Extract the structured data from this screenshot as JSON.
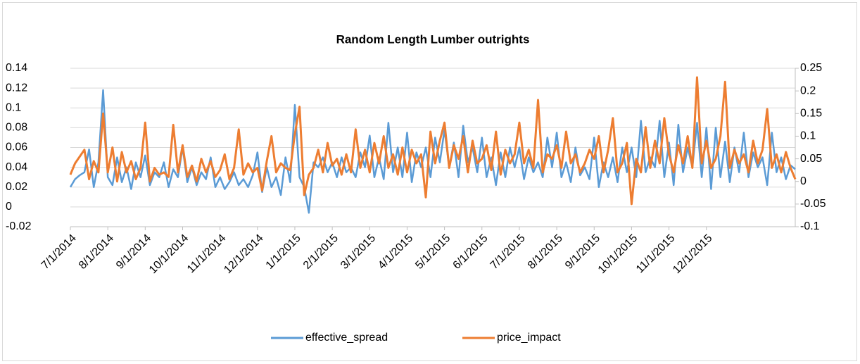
{
  "chart_data": {
    "type": "line",
    "title": "Random Length Lumber outrights",
    "categories": [
      "7/1/2014",
      null,
      null,
      null,
      null,
      null,
      null,
      null,
      "8/1/2014",
      null,
      null,
      null,
      null,
      null,
      null,
      null,
      "9/1/2014",
      null,
      null,
      null,
      null,
      null,
      null,
      null,
      "10/1/2014",
      null,
      null,
      null,
      null,
      null,
      null,
      null,
      "11/1/2014",
      null,
      null,
      null,
      null,
      null,
      null,
      null,
      "12/1/2014",
      null,
      null,
      null,
      null,
      null,
      null,
      null,
      "1/1/2015",
      null,
      null,
      null,
      null,
      null,
      null,
      null,
      "2/1/2015",
      null,
      null,
      null,
      null,
      null,
      null,
      null,
      "3/1/2015",
      null,
      null,
      null,
      null,
      null,
      null,
      null,
      "4/1/2015",
      null,
      null,
      null,
      null,
      null,
      null,
      null,
      "5/1/2015",
      null,
      null,
      null,
      null,
      null,
      null,
      null,
      "6/1/2015",
      null,
      null,
      null,
      null,
      null,
      null,
      null,
      "7/1/2015",
      null,
      null,
      null,
      null,
      null,
      null,
      null,
      "8/1/2015",
      null,
      null,
      null,
      null,
      null,
      null,
      null,
      "9/1/2015",
      null,
      null,
      null,
      null,
      null,
      null,
      null,
      "10/1/2015",
      null,
      null,
      null,
      null,
      null,
      null,
      null,
      "11/1/2015",
      null,
      null,
      null,
      null,
      null,
      null,
      null,
      "12/1/2015",
      null,
      null,
      null,
      null,
      null,
      null,
      null,
      null,
      null,
      null,
      null,
      null,
      null,
      null,
      null,
      null,
      null,
      null,
      null
    ],
    "series": [
      {
        "name": "effective_spread",
        "color": "#5b9bd5",
        "axis": "y",
        "values": [
          0.02,
          0.028,
          0.032,
          0.035,
          0.058,
          0.02,
          0.045,
          0.118,
          0.03,
          0.022,
          0.05,
          0.025,
          0.04,
          0.018,
          0.045,
          0.03,
          0.052,
          0.022,
          0.035,
          0.03,
          0.045,
          0.02,
          0.038,
          0.03,
          0.06,
          0.025,
          0.04,
          0.022,
          0.035,
          0.028,
          0.05,
          0.02,
          0.03,
          0.018,
          0.025,
          0.035,
          0.022,
          0.028,
          0.02,
          0.032,
          0.055,
          0.015,
          0.04,
          0.02,
          0.03,
          0.012,
          0.05,
          0.025,
          0.103,
          0.03,
          0.02,
          -0.006,
          0.045,
          0.04,
          0.05,
          0.035,
          0.045,
          0.03,
          0.05,
          0.035,
          0.04,
          0.03,
          0.055,
          0.04,
          0.072,
          0.03,
          0.05,
          0.028,
          0.085,
          0.035,
          0.06,
          0.03,
          0.075,
          0.025,
          0.055,
          0.04,
          0.06,
          0.03,
          0.07,
          0.045,
          0.078,
          0.04,
          0.065,
          0.03,
          0.082,
          0.045,
          0.06,
          0.035,
          0.07,
          0.03,
          0.05,
          0.022,
          0.055,
          0.03,
          0.06,
          0.04,
          0.06,
          0.028,
          0.05,
          0.035,
          0.045,
          0.03,
          0.07,
          0.04,
          0.075,
          0.03,
          0.045,
          0.025,
          0.06,
          0.032,
          0.04,
          0.028,
          0.07,
          0.02,
          0.045,
          0.03,
          0.05,
          0.025,
          0.06,
          0.035,
          0.06,
          0.03,
          0.087,
          0.035,
          0.05,
          0.04,
          0.087,
          0.03,
          0.065,
          0.022,
          0.083,
          0.035,
          0.06,
          0.04,
          0.085,
          0.03,
          0.08,
          0.018,
          0.08,
          0.03,
          0.066,
          0.025,
          0.06,
          0.035,
          0.075,
          0.03,
          0.055,
          0.04,
          0.05,
          0.022,
          0.075,
          0.035,
          0.05,
          0.028,
          0.042,
          0.038
        ]
      },
      {
        "name": "price_impact",
        "color": "#ed7d31",
        "axis": "y2",
        "values": [
          0.015,
          0.04,
          0.055,
          0.07,
          0.005,
          0.045,
          0.02,
          0.15,
          0.02,
          0.075,
          0.0,
          0.065,
          0.02,
          0.045,
          0.005,
          0.03,
          0.13,
          0.0,
          0.03,
          0.015,
          0.02,
          0.01,
          0.125,
          0.02,
          0.08,
          0.01,
          0.035,
          0.0,
          0.05,
          0.02,
          0.045,
          0.01,
          0.025,
          0.06,
          0.005,
          0.03,
          0.115,
          0.015,
          0.04,
          0.02,
          0.03,
          -0.02,
          0.045,
          0.1,
          0.02,
          0.04,
          0.03,
          0.025,
          0.105,
          0.165,
          -0.03,
          0.015,
          0.03,
          0.07,
          0.02,
          0.085,
          0.035,
          0.05,
          0.015,
          0.06,
          0.02,
          0.115,
          0.03,
          0.07,
          0.02,
          0.085,
          0.04,
          0.1,
          0.03,
          0.06,
          0.015,
          0.075,
          0.02,
          0.07,
          0.04,
          0.06,
          -0.035,
          0.11,
          0.04,
          0.09,
          0.13,
          0.03,
          0.08,
          0.05,
          0.1,
          0.02,
          0.09,
          0.04,
          0.05,
          0.08,
          0.025,
          0.11,
          0.015,
          0.07,
          0.04,
          0.06,
          0.13,
          0.04,
          0.07,
          0.03,
          0.18,
          0.02,
          0.06,
          0.05,
          0.08,
          0.03,
          0.11,
          0.04,
          0.06,
          0.02,
          0.04,
          0.07,
          0.05,
          0.1,
          0.02,
          0.07,
          0.14,
          0.02,
          0.04,
          0.085,
          -0.05,
          0.05,
          0.02,
          0.12,
          0.03,
          0.09,
          0.04,
          0.14,
          0.06,
          0.02,
          0.08,
          0.04,
          0.1,
          0.03,
          0.23,
          0.04,
          0.09,
          0.03,
          0.05,
          0.1,
          0.22,
          0.03,
          0.07,
          0.04,
          0.06,
          0.02,
          0.09,
          0.04,
          0.07,
          0.16,
          0.03,
          0.06,
          0.02,
          0.065,
          0.03,
          0.005
        ]
      }
    ],
    "ylim": [
      -0.02,
      0.14
    ],
    "yticks": [
      -0.02,
      0,
      0.02,
      0.04,
      0.06,
      0.08,
      0.1,
      0.12,
      0.14
    ],
    "y2lim": [
      -0.1,
      0.25
    ],
    "y2ticks": [
      -0.1,
      -0.05,
      0,
      0.05,
      0.1,
      0.15,
      0.2,
      0.25
    ],
    "grid": true,
    "legend": "bottom"
  }
}
